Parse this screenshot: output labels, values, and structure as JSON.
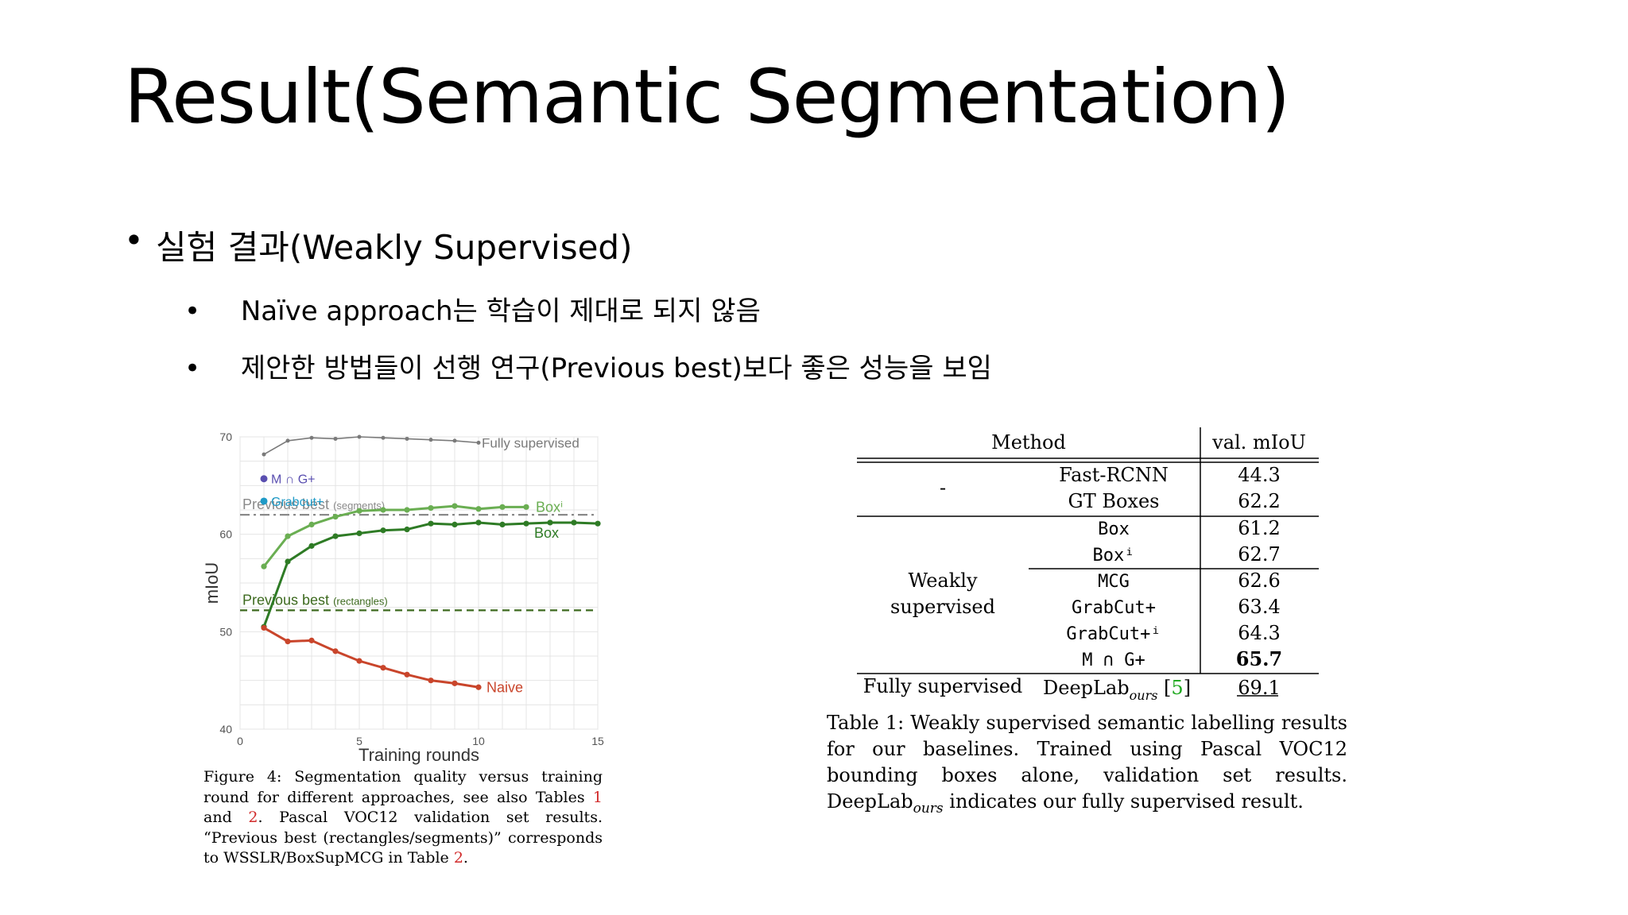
{
  "slide": {
    "title": "Result(Semantic Segmentation)",
    "bullet1": "실험 결과(Weakly Supervised)",
    "bullet1_mark": "•",
    "bullet2_mark": "•",
    "bullet2a": "Naïve approach는 학습이 제대로 되지 않음",
    "bullet2b": "제안한 방법들이 선행 연구(Previous best)보다 좋은 성능을 보임"
  },
  "chart_data": {
    "type": "line",
    "xlabel": "Training rounds",
    "ylabel": "mIoU",
    "xlim": [
      0,
      15
    ],
    "ylim": [
      40,
      70
    ],
    "xticks": [
      "0",
      "5",
      "10",
      "15"
    ],
    "yticks": [
      "40",
      "50",
      "60",
      "70"
    ],
    "grid": true,
    "series": [
      {
        "name": "Fully supervised",
        "color": "#7a7a7a",
        "x": [
          1,
          2,
          3,
          4,
          5,
          6,
          7,
          8,
          9,
          10
        ],
        "y": [
          68.2,
          69.6,
          69.9,
          69.8,
          70.0,
          69.9,
          69.8,
          69.7,
          69.6,
          69.4
        ]
      },
      {
        "name": "Boxⁱ",
        "color": "#6aae52",
        "x": [
          1,
          2,
          3,
          4,
          5,
          6,
          7,
          8,
          9,
          10,
          11,
          12
        ],
        "y": [
          56.7,
          59.8,
          61.0,
          61.8,
          62.4,
          62.5,
          62.5,
          62.7,
          62.9,
          62.6,
          62.8,
          62.8
        ]
      },
      {
        "name": "Box",
        "color": "#2e7b25",
        "x": [
          1,
          2,
          3,
          4,
          5,
          6,
          7,
          8,
          9,
          10,
          11,
          12,
          13,
          14,
          15
        ],
        "y": [
          50.5,
          57.2,
          58.8,
          59.8,
          60.1,
          60.4,
          60.5,
          61.1,
          61.0,
          61.2,
          61.0,
          61.1,
          61.2,
          61.2,
          61.1
        ]
      },
      {
        "name": "Naive",
        "color": "#c9452b",
        "x": [
          1,
          2,
          3,
          4,
          5,
          6,
          7,
          8,
          9,
          10
        ],
        "y": [
          50.4,
          49.0,
          49.1,
          48.0,
          47.0,
          46.3,
          45.6,
          45.0,
          44.7,
          44.3
        ]
      }
    ],
    "single_points": [
      {
        "name": "M ∩ G+",
        "y": 65.7,
        "color": "#5a4fb0"
      },
      {
        "name": "Grabcut+",
        "y": 63.4,
        "color": "#1e9ac7"
      }
    ],
    "reference_lines": [
      {
        "label": "Previous best",
        "label_small": "(segments)",
        "y": 62.0,
        "style": "dashdot",
        "color": "#8a8a8a"
      },
      {
        "label": "Previous best",
        "label_small": "(rectangles)",
        "y": 52.2,
        "style": "dashed",
        "color": "#3d6a1f"
      }
    ]
  },
  "figure_caption": {
    "before1": "Figure 4: Segmentation quality versus training round for different approaches, see also Tables ",
    "ref1": "1",
    "mid": " and ",
    "ref2": "2",
    "after": ". Pascal VOC12 validation set results. “Previous best (rectangles/segments)” corresponds to WSSLR/BoxSupMCG in Table ",
    "ref3": "2",
    "end": "."
  },
  "table": {
    "header_method": "Method",
    "header_value": "val. mIoU",
    "group_none": "-",
    "group_weak_line1": "Weakly",
    "group_weak_line2": "supervised",
    "group_full": "Fully supervised",
    "rows": [
      {
        "method": "Fast-RCNN",
        "value": "44.3"
      },
      {
        "method": "GT Boxes",
        "value": "62.2"
      },
      {
        "method": "Box",
        "value": "61.2"
      },
      {
        "method": "Boxⁱ",
        "value": "62.7"
      },
      {
        "method": "MCG",
        "value": "62.6"
      },
      {
        "method": "GrabCut+",
        "value": "63.4"
      },
      {
        "method": "GrabCut+ⁱ",
        "value": "64.3"
      },
      {
        "method": "M ∩ G+",
        "value": "65.7"
      },
      {
        "method": "DeepLab",
        "method_sub": "ours",
        "method_ref": "5",
        "value": "69.1"
      }
    ]
  },
  "table_caption": {
    "text1": "Table 1: Weakly supervised semantic labelling results for our baselines. Trained using Pascal VOC12 bounding boxes alone, validation set results. DeepLab",
    "sub": "ours",
    "text2": " indicates our fully supervised result."
  }
}
